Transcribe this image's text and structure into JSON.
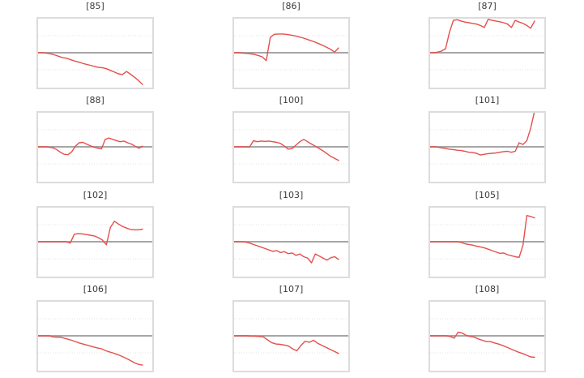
{
  "theme": {
    "background": "#ffffff",
    "line_color": "#e3504c",
    "baseline_color": "#a6a6a6",
    "grid_color": "#e3e3e3",
    "panel_border_color": "#dcdcdc",
    "title_color": "#3a3a3a"
  },
  "figure": {
    "description": "grid of 12 small line charts (3 columns x 4 rows), each with a gray zero baseline and faint dotted gridlines",
    "columns": 3,
    "rows": 4
  },
  "chart_data": [
    {
      "type": "line",
      "title": "[85]",
      "xlabel": "",
      "ylabel": "",
      "legend": false,
      "grid": true,
      "grid_y": [
        0.5,
        -0.5
      ],
      "baseline": 0,
      "ylim": [
        -1.1,
        1.1
      ],
      "values_unit": "normalized to panel half-height, 0 = gray baseline",
      "values": [
        0,
        0,
        -0.01,
        -0.03,
        -0.06,
        -0.1,
        -0.14,
        -0.16,
        -0.2,
        -0.24,
        -0.27,
        -0.31,
        -0.34,
        -0.37,
        -0.4,
        -0.43,
        -0.44,
        -0.47,
        -0.52,
        -0.57,
        -0.62,
        -0.64,
        -0.55,
        -0.63,
        -0.72,
        -0.82,
        -0.93
      ]
    },
    {
      "type": "line",
      "title": "[86]",
      "xlabel": "",
      "ylabel": "",
      "legend": false,
      "grid": true,
      "grid_y": [
        0.5,
        -0.5
      ],
      "baseline": 0,
      "ylim": [
        -1.1,
        1.1
      ],
      "values_unit": "normalized to panel half-height, 0 = gray baseline",
      "values": [
        0,
        0,
        -0.01,
        -0.02,
        -0.03,
        -0.05,
        -0.08,
        -0.12,
        -0.23,
        0.45,
        0.54,
        0.55,
        0.55,
        0.54,
        0.52,
        0.5,
        0.47,
        0.44,
        0.4,
        0.36,
        0.32,
        0.27,
        0.22,
        0.16,
        0.1,
        0.02,
        0.14
      ]
    },
    {
      "type": "line",
      "title": "[87]",
      "xlabel": "",
      "ylabel": "",
      "legend": false,
      "grid": true,
      "grid_y": [
        0.5,
        -0.5
      ],
      "baseline": 0,
      "ylim": [
        -1.1,
        1.1
      ],
      "values_unit": "normalized to panel half-height, 0 = gray baseline",
      "values": [
        0,
        0,
        0.02,
        0.05,
        0.12,
        0.6,
        0.95,
        0.97,
        0.93,
        0.9,
        0.88,
        0.86,
        0.84,
        0.8,
        0.74,
        0.98,
        0.95,
        0.93,
        0.91,
        0.88,
        0.84,
        0.74,
        0.95,
        0.9,
        0.86,
        0.8,
        0.72,
        0.93
      ]
    },
    {
      "type": "line",
      "title": "[88]",
      "xlabel": "",
      "ylabel": "",
      "legend": false,
      "grid": true,
      "grid_y": [
        0.5,
        -0.5
      ],
      "baseline": 0,
      "ylim": [
        -1.1,
        1.1
      ],
      "values_unit": "normalized to panel half-height, 0 = gray baseline",
      "values": [
        0,
        0,
        0,
        -0.01,
        -0.03,
        -0.08,
        -0.16,
        -0.22,
        -0.23,
        -0.15,
        0.02,
        0.12,
        0.13,
        0.08,
        0.03,
        -0.01,
        -0.04,
        -0.06,
        0.22,
        0.26,
        0.22,
        0.18,
        0.15,
        0.17,
        0.12,
        0.08,
        0.02,
        -0.04,
        0.02
      ]
    },
    {
      "type": "line",
      "title": "[100]",
      "xlabel": "",
      "ylabel": "",
      "legend": false,
      "grid": true,
      "grid_y": [
        0.5,
        -0.5
      ],
      "baseline": 0,
      "ylim": [
        -1.1,
        1.1
      ],
      "values_unit": "normalized to panel half-height, 0 = gray baseline",
      "values": [
        0,
        0,
        0,
        0,
        -0.01,
        0.18,
        0.15,
        0.17,
        0.16,
        0.17,
        0.15,
        0.13,
        0.1,
        0.02,
        -0.07,
        -0.05,
        0.05,
        0.15,
        0.22,
        0.15,
        0.08,
        0.02,
        -0.05,
        -0.12,
        -0.2,
        -0.28,
        -0.34,
        -0.4
      ]
    },
    {
      "type": "line",
      "title": "[101]",
      "xlabel": "",
      "ylabel": "",
      "legend": false,
      "grid": true,
      "grid_y": [
        0.5,
        -0.5
      ],
      "baseline": 0,
      "ylim": [
        -1.1,
        1.1
      ],
      "values_unit": "normalized to panel half-height, 0 = gray baseline",
      "values": [
        0,
        0,
        -0.01,
        -0.03,
        -0.05,
        -0.07,
        -0.08,
        -0.1,
        -0.11,
        -0.13,
        -0.16,
        -0.17,
        -0.19,
        -0.24,
        -0.22,
        -0.2,
        -0.19,
        -0.18,
        -0.16,
        -0.14,
        -0.13,
        -0.16,
        -0.13,
        0.12,
        0.07,
        0.18,
        0.55,
        1.05
      ]
    },
    {
      "type": "line",
      "title": "[102]",
      "xlabel": "",
      "ylabel": "",
      "legend": false,
      "grid": true,
      "grid_y": [
        0.5,
        -0.5
      ],
      "baseline": 0,
      "ylim": [
        -1.1,
        1.1
      ],
      "values_unit": "normalized to panel half-height, 0 = gray baseline",
      "values": [
        0,
        0,
        0,
        0,
        0,
        0,
        0,
        0,
        -0.04,
        0.22,
        0.24,
        0.23,
        0.21,
        0.19,
        0.17,
        0.12,
        0.05,
        -0.09,
        0.42,
        0.6,
        0.52,
        0.45,
        0.4,
        0.36,
        0.35,
        0.35,
        0.37
      ]
    },
    {
      "type": "line",
      "title": "[103]",
      "xlabel": "",
      "ylabel": "",
      "legend": false,
      "grid": true,
      "grid_y": [
        0.5,
        -0.5
      ],
      "baseline": 0,
      "ylim": [
        -1.1,
        1.1
      ],
      "values_unit": "normalized to panel half-height, 0 = gray baseline",
      "values": [
        0,
        0,
        0,
        -0.01,
        -0.04,
        -0.08,
        -0.12,
        -0.16,
        -0.2,
        -0.24,
        -0.28,
        -0.26,
        -0.32,
        -0.29,
        -0.35,
        -0.33,
        -0.4,
        -0.36,
        -0.44,
        -0.48,
        -0.62,
        -0.36,
        -0.42,
        -0.48,
        -0.54,
        -0.47,
        -0.44,
        -0.52
      ]
    },
    {
      "type": "line",
      "title": "[105]",
      "xlabel": "",
      "ylabel": "",
      "legend": false,
      "grid": true,
      "grid_y": [
        0.5,
        -0.5
      ],
      "baseline": 0,
      "ylim": [
        -1.1,
        1.1
      ],
      "values_unit": "normalized to panel half-height, 0 = gray baseline",
      "values": [
        0,
        0,
        0,
        0,
        0,
        0,
        0,
        0,
        -0.02,
        -0.06,
        -0.08,
        -0.1,
        -0.13,
        -0.15,
        -0.18,
        -0.22,
        -0.26,
        -0.3,
        -0.34,
        -0.33,
        -0.38,
        -0.41,
        -0.44,
        -0.46,
        -0.1,
        0.77,
        0.74,
        0.7
      ]
    },
    {
      "type": "line",
      "title": "[106]",
      "xlabel": "",
      "ylabel": "",
      "legend": false,
      "grid": true,
      "grid_y": [
        0.5,
        -0.5
      ],
      "baseline": 0,
      "ylim": [
        -1.1,
        1.1
      ],
      "values_unit": "normalized to panel half-height, 0 = gray baseline",
      "values": [
        0,
        0,
        0,
        0,
        -0.03,
        -0.04,
        -0.04,
        -0.07,
        -0.1,
        -0.13,
        -0.17,
        -0.21,
        -0.24,
        -0.27,
        -0.3,
        -0.33,
        -0.36,
        -0.38,
        -0.43,
        -0.47,
        -0.5,
        -0.54,
        -0.58,
        -0.63,
        -0.68,
        -0.74,
        -0.8,
        -0.84,
        -0.86
      ]
    },
    {
      "type": "line",
      "title": "[107]",
      "xlabel": "",
      "ylabel": "",
      "legend": false,
      "grid": true,
      "grid_y": [
        0.5,
        -0.5
      ],
      "baseline": 0,
      "ylim": [
        -1.1,
        1.1
      ],
      "values_unit": "normalized to panel half-height, 0 = gray baseline",
      "values": [
        0,
        0,
        0,
        0,
        -0.01,
        -0.01,
        -0.02,
        -0.03,
        -0.12,
        -0.2,
        -0.24,
        -0.25,
        -0.27,
        -0.3,
        -0.38,
        -0.44,
        -0.28,
        -0.16,
        -0.19,
        -0.13,
        -0.22,
        -0.28,
        -0.34,
        -0.4,
        -0.46,
        -0.52
      ]
    },
    {
      "type": "line",
      "title": "[108]",
      "xlabel": "",
      "ylabel": "",
      "legend": false,
      "grid": true,
      "grid_y": [
        0.5,
        -0.5
      ],
      "baseline": 0,
      "ylim": [
        -1.1,
        1.1
      ],
      "values_unit": "normalized to panel half-height, 0 = gray baseline",
      "values": [
        0,
        0,
        0,
        0,
        0,
        -0.02,
        -0.07,
        0.11,
        0.08,
        0.01,
        -0.02,
        -0.04,
        -0.09,
        -0.13,
        -0.17,
        -0.17,
        -0.21,
        -0.24,
        -0.28,
        -0.33,
        -0.38,
        -0.43,
        -0.48,
        -0.52,
        -0.57,
        -0.62,
        -0.63
      ]
    }
  ]
}
